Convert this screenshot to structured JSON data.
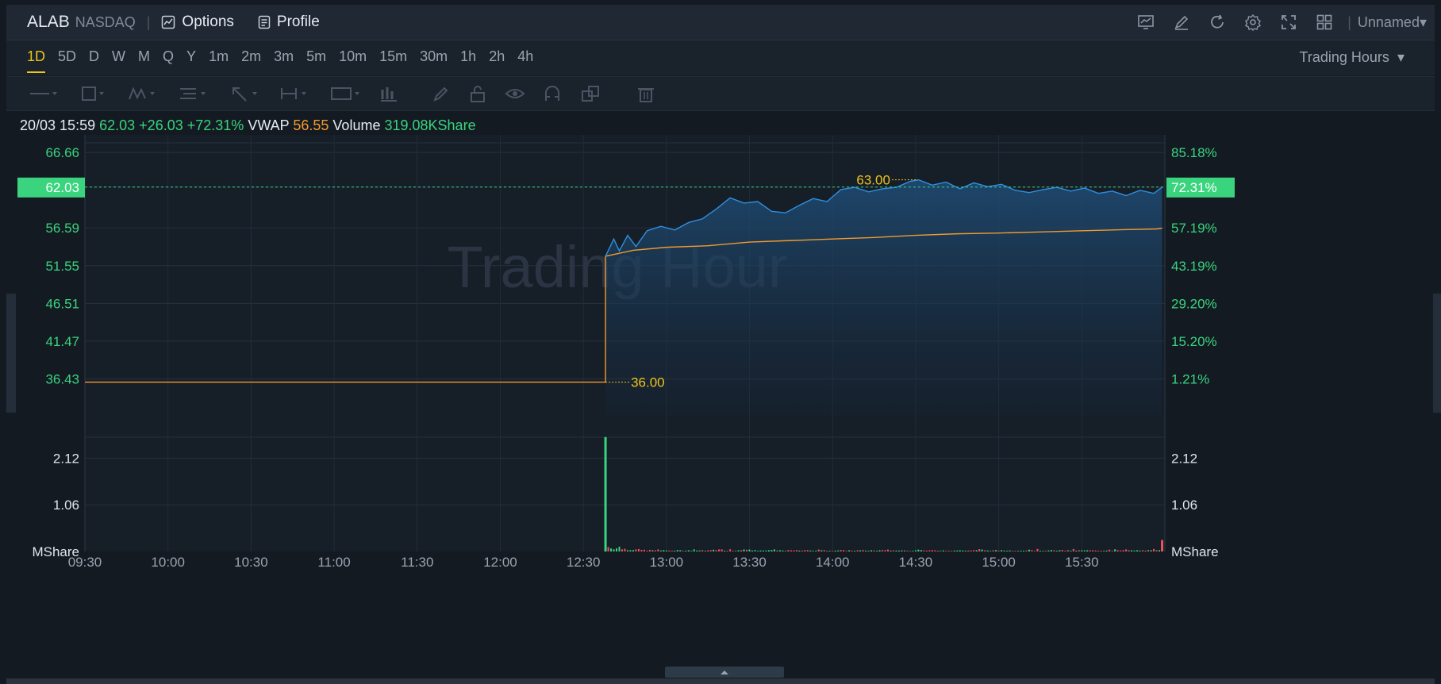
{
  "header": {
    "symbol": "ALAB",
    "exchange": "NASDAQ",
    "options_label": "Options",
    "profile_label": "Profile",
    "layout_name": "Unnamed",
    "icons": [
      "chart-icon",
      "draw-icon",
      "refresh-icon",
      "settings-icon",
      "fullscreen-icon",
      "layout-grid-icon"
    ]
  },
  "timeframes": [
    "1D",
    "5D",
    "D",
    "W",
    "M",
    "Q",
    "Y",
    "1m",
    "2m",
    "3m",
    "5m",
    "10m",
    "15m",
    "30m",
    "1h",
    "2h",
    "4h"
  ],
  "active_timeframe": "1D",
  "session": {
    "label": "Trading Hours"
  },
  "info": {
    "datetime": "20/03 15:59",
    "price": "62.03",
    "change": "+26.03",
    "change_pct": "+72.31%",
    "vwap_label": "VWAP",
    "vwap": "56.55",
    "volume_label": "Volume",
    "volume": "319.08KShare"
  },
  "watermark": "Trading Hour",
  "colors": {
    "up": "#3ad47e",
    "down": "#f0505a",
    "price_line": "#2f8fe0",
    "vwap_line": "#f39a2e",
    "annotation": "#f0c419",
    "background": "#131a22"
  },
  "chart_data": {
    "type": "line",
    "title": "",
    "y_left_ticks": [
      "66.66",
      "62.03",
      "56.59",
      "51.55",
      "46.51",
      "41.47",
      "36.43"
    ],
    "y_right_ticks": [
      "85.18%",
      "72.31%",
      "57.19%",
      "43.19%",
      "29.20%",
      "15.20%",
      "1.21%"
    ],
    "ylim": [
      31.4,
      69.0
    ],
    "volume_ticks": [
      "2.12",
      "1.06"
    ],
    "volume_unit": "MShare",
    "x_ticks": [
      "09:30",
      "10:00",
      "10:30",
      "11:00",
      "11:30",
      "12:00",
      "12:30",
      "13:00",
      "13:30",
      "14:00",
      "14:30",
      "15:00",
      "15:30"
    ],
    "current_price": 62.03,
    "current_pct": "72.31%",
    "prev_close": 36.0,
    "annotations": [
      {
        "text": "63.00",
        "time": "14:30",
        "value": 63.0
      },
      {
        "text": "36.00",
        "time": "12:38",
        "value": 36.0
      }
    ],
    "series": [
      {
        "name": "Price",
        "points": [
          [
            "09:30",
            36.0
          ],
          [
            "12:38",
            36.0
          ],
          [
            "12:38",
            52.8
          ],
          [
            "12:41",
            55.1
          ],
          [
            "12:43",
            53.5
          ],
          [
            "12:46",
            55.6
          ],
          [
            "12:49",
            54.1
          ],
          [
            "12:53",
            56.2
          ],
          [
            "12:58",
            56.8
          ],
          [
            "13:03",
            56.3
          ],
          [
            "13:08",
            57.3
          ],
          [
            "13:13",
            57.8
          ],
          [
            "13:18",
            59.1
          ],
          [
            "13:23",
            60.6
          ],
          [
            "13:28",
            59.9
          ],
          [
            "13:33",
            60.1
          ],
          [
            "13:38",
            58.8
          ],
          [
            "13:43",
            58.6
          ],
          [
            "13:48",
            59.6
          ],
          [
            "13:53",
            60.5
          ],
          [
            "13:58",
            60.1
          ],
          [
            "14:03",
            61.7
          ],
          [
            "14:08",
            62.0
          ],
          [
            "14:13",
            61.4
          ],
          [
            "14:18",
            61.8
          ],
          [
            "14:23",
            62.0
          ],
          [
            "14:28",
            62.8
          ],
          [
            "14:31",
            63.0
          ],
          [
            "14:36",
            62.3
          ],
          [
            "14:41",
            62.7
          ],
          [
            "14:46",
            61.8
          ],
          [
            "14:51",
            62.6
          ],
          [
            "14:56",
            62.1
          ],
          [
            "15:01",
            62.4
          ],
          [
            "15:06",
            61.6
          ],
          [
            "15:11",
            61.3
          ],
          [
            "15:16",
            61.7
          ],
          [
            "15:21",
            62.0
          ],
          [
            "15:26",
            61.5
          ],
          [
            "15:31",
            61.9
          ],
          [
            "15:36",
            61.2
          ],
          [
            "15:41",
            61.5
          ],
          [
            "15:46",
            60.9
          ],
          [
            "15:51",
            61.6
          ],
          [
            "15:56",
            61.2
          ],
          [
            "15:59",
            62.03
          ]
        ]
      },
      {
        "name": "VWAP",
        "points": [
          [
            "09:30",
            36.0
          ],
          [
            "12:38",
            36.0
          ],
          [
            "12:38",
            52.8
          ],
          [
            "12:48",
            53.6
          ],
          [
            "13:00",
            54.0
          ],
          [
            "13:15",
            54.2
          ],
          [
            "13:30",
            54.7
          ],
          [
            "13:45",
            54.9
          ],
          [
            "14:00",
            55.1
          ],
          [
            "14:15",
            55.3
          ],
          [
            "14:30",
            55.6
          ],
          [
            "14:45",
            55.8
          ],
          [
            "15:00",
            55.9
          ],
          [
            "15:15",
            56.05
          ],
          [
            "15:30",
            56.2
          ],
          [
            "15:45",
            56.35
          ],
          [
            "15:57",
            56.45
          ],
          [
            "15:59",
            56.55
          ]
        ]
      }
    ],
    "volume": {
      "unit": "MShare",
      "ylim": [
        0,
        2.65
      ],
      "spike": {
        "time": "12:38",
        "value": 2.6,
        "direction": "up"
      },
      "last": {
        "time": "15:59",
        "value": 0.26,
        "direction": "down"
      }
    }
  }
}
